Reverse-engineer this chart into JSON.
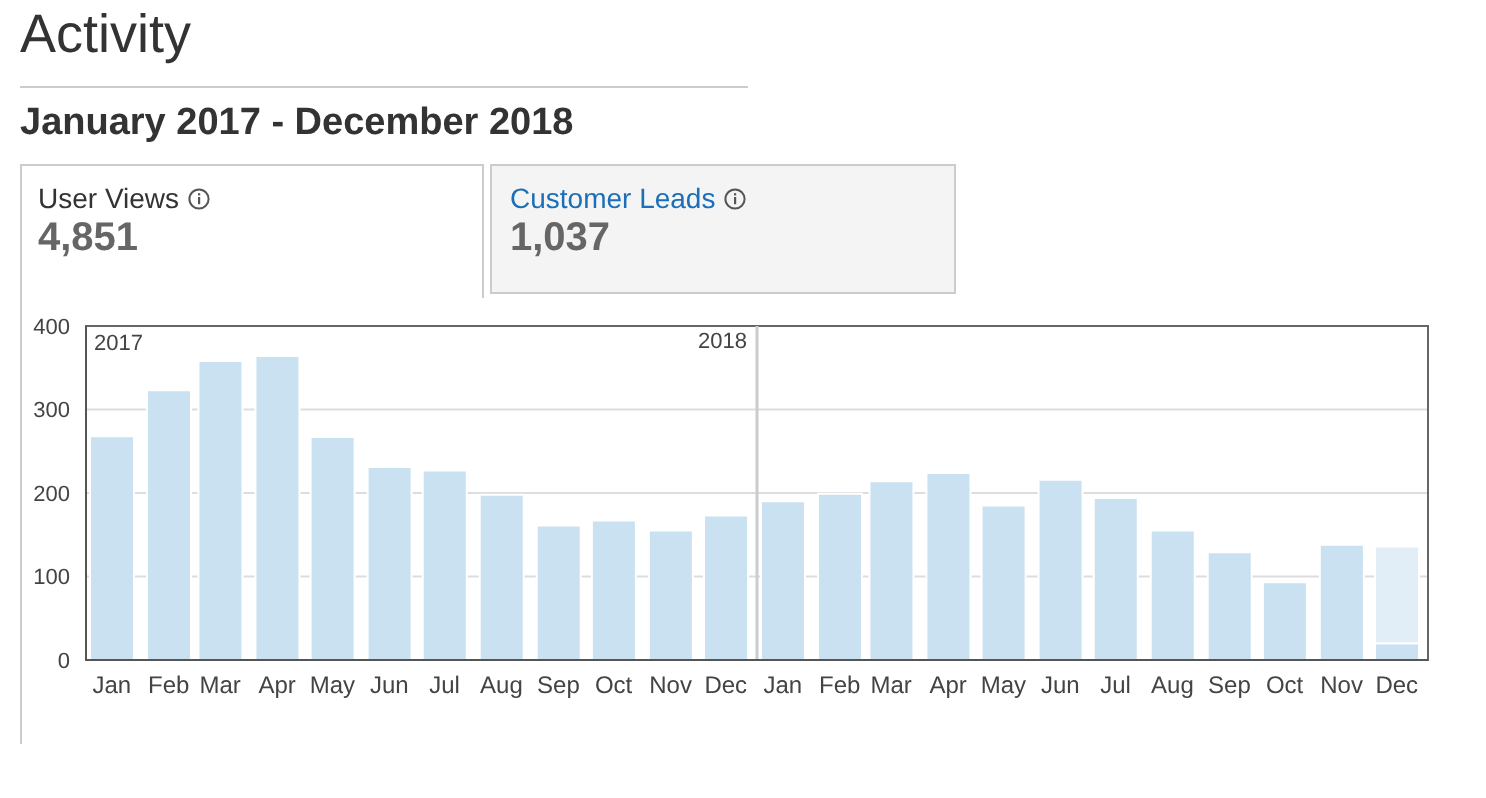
{
  "chart_data": {
    "type": "bar",
    "title": "Activity",
    "subtitle": "January 2017 - December 2018",
    "annotations": [
      "User Views",
      "4,851",
      "Customer Leads",
      "1,037",
      "2017"
    ],
    "x": [
      "2017-01-15",
      "2017-02-15",
      "2017-03-15",
      "2017-04-15",
      "2017-05-15",
      "2017-06-15",
      "2017-07-15",
      "2017-08-15",
      "2017-09-15",
      "2017-10-15",
      "2017-11-15",
      "2017-12-15",
      "2018-01-15",
      "2018-02-15",
      "2018-03-15",
      "2018-04-15",
      "2018-05-15",
      "2018-06-15",
      "2018-07-15",
      "2018-08-15",
      "2018-09-15",
      "2018-10-15",
      "2018-11-15",
      "2018-12-15"
    ],
    "xlim": [
      "2017-01-01",
      "2019-01-01"
    ],
    "xticks": [
      {
        "value": "2017-01-15",
        "label": "Jan"
      },
      {
        "value": "2017-02-15",
        "label": "Feb"
      },
      {
        "value": "2017-03-15",
        "label": "Mar"
      },
      {
        "value": "2017-04-15",
        "label": "Apr"
      },
      {
        "value": "2017-05-15",
        "label": "May"
      },
      {
        "value": "2017-06-15",
        "label": "Jun"
      },
      {
        "value": "2017-07-15",
        "label": "Jul"
      },
      {
        "value": "2017-08-15",
        "label": "Aug"
      },
      {
        "value": "2017-09-15",
        "label": "Sep"
      },
      {
        "value": "2017-10-15",
        "label": "Oct"
      },
      {
        "value": "2017-11-15",
        "label": "Nov"
      },
      {
        "value": "2017-12-15",
        "label": "Dec"
      },
      {
        "value": "2018-01-15",
        "label": "Jan"
      },
      {
        "value": "2018-02-15",
        "label": "Feb"
      },
      {
        "value": "2018-03-15",
        "label": "Mar"
      },
      {
        "value": "2018-04-15",
        "label": "Apr"
      },
      {
        "value": "2018-05-15",
        "label": "May"
      },
      {
        "value": "2018-06-15",
        "label": "Jun"
      },
      {
        "value": "2018-07-15",
        "label": "Jul"
      },
      {
        "value": "2018-08-15",
        "label": "Aug"
      },
      {
        "value": "2018-09-15",
        "label": "Sep"
      },
      {
        "value": "2018-10-15",
        "label": "Oct"
      },
      {
        "value": "2018-11-15",
        "label": "Nov"
      },
      {
        "value": "2018-12-15",
        "label": "Dec"
      }
    ],
    "stacked": true,
    "series": [
      {
        "color": "#c9e1f0",
        "values": [
          268,
          323,
          358,
          364,
          267,
          231,
          227,
          198,
          161,
          167,
          155,
          173,
          190,
          199,
          214,
          224,
          185,
          216,
          194,
          155,
          129,
          93,
          138,
          20
        ]
      },
      {
        "color": "#e1eef7",
        "values": [
          null,
          null,
          null,
          null,
          null,
          null,
          null,
          null,
          null,
          null,
          null,
          null,
          null,
          null,
          null,
          null,
          null,
          null,
          null,
          null,
          null,
          null,
          null,
          116
        ]
      }
    ],
    "ref_lines": [
      {
        "axis": "x",
        "value": "2018-01-01",
        "label": "2018",
        "color": "#cccccc"
      }
    ],
    "ylim": [
      0,
      400
    ],
    "yticks": [
      0,
      100,
      200,
      300,
      400
    ],
    "grid": "y"
  }
}
